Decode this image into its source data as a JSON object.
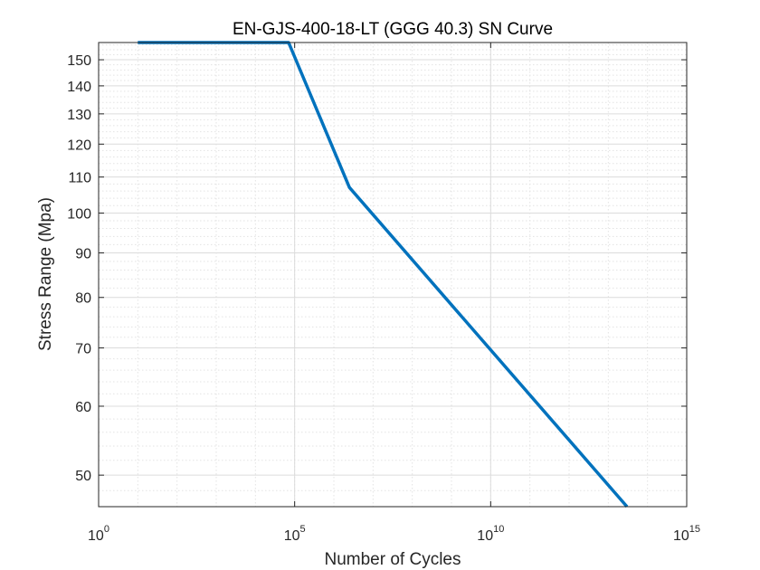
{
  "chart_data": {
    "type": "line",
    "title": "EN-GJS-400-18-LT (GGG 40.3) SN Curve",
    "xlabel": "Number of Cycles",
    "ylabel": "Stress Range (Mpa)",
    "x_scale": "log",
    "y_scale": "log",
    "xlim": [
      1,
      1000000000000000
    ],
    "ylim": [
      46,
      157
    ],
    "grid": true,
    "x_ticks": [
      {
        "base": "10",
        "exp": "0",
        "value": 1
      },
      {
        "base": "10",
        "exp": "5",
        "value": 100000
      },
      {
        "base": "10",
        "exp": "10",
        "value": 10000000000
      },
      {
        "base": "10",
        "exp": "15",
        "value": 1000000000000000
      }
    ],
    "y_ticks": [
      "50",
      "60",
      "70",
      "80",
      "90",
      "100",
      "110",
      "120",
      "130",
      "140",
      "150"
    ],
    "series": [
      {
        "color": "#0072BD",
        "x": [
          10,
          70000,
          2500000,
          30000000000000
        ],
        "y": [
          157,
          157,
          107,
          46
        ]
      }
    ]
  }
}
